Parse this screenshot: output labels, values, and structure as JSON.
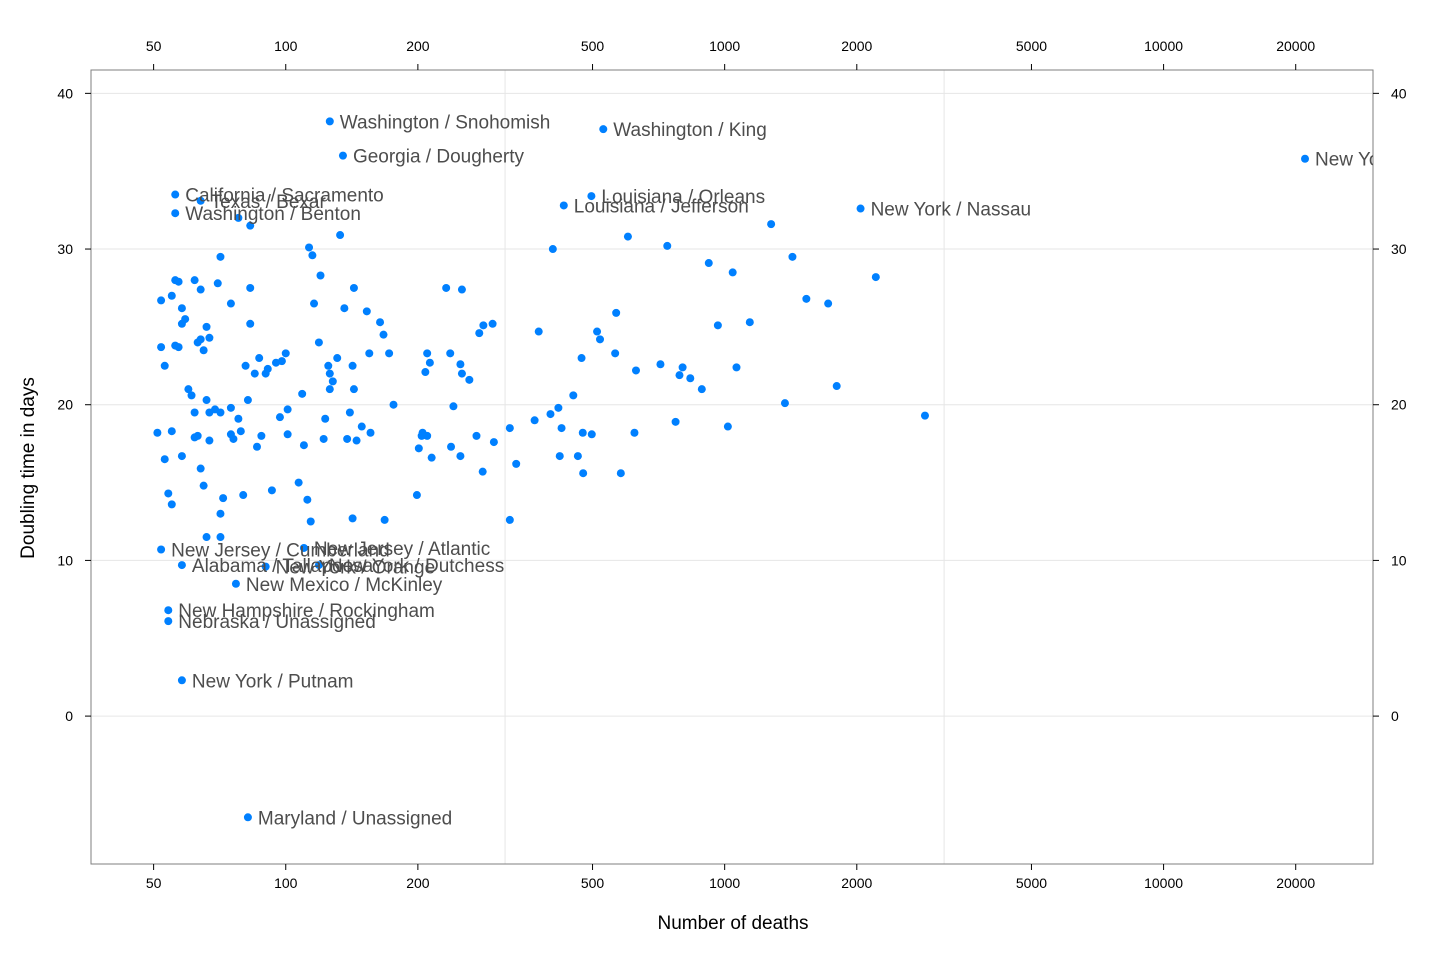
{
  "chart_data": {
    "type": "scatter",
    "xlabel": "Number of deaths",
    "ylabel": "Doubling time in days",
    "xscale": "log",
    "xlim": [
      36,
      30000
    ],
    "ylim": [
      -9.5,
      41.5
    ],
    "x_ticks": [
      50,
      100,
      200,
      500,
      1000,
      2000,
      5000,
      10000,
      20000
    ],
    "y_ticks": [
      0,
      10,
      20,
      30,
      40
    ],
    "x_gridlines": [
      316,
      3162
    ],
    "grid": true,
    "point_color": "#0080ff",
    "labeled_points": [
      {
        "x": 126,
        "y": 38.2,
        "label": "Washington / Snohomish"
      },
      {
        "x": 529,
        "y": 37.7,
        "label": "Washington / King"
      },
      {
        "x": 135,
        "y": 36.0,
        "label": "Georgia / Dougherty"
      },
      {
        "x": 21000,
        "y": 35.8,
        "label": "New York / New York"
      },
      {
        "x": 56,
        "y": 33.5,
        "label": "California / Sacramento"
      },
      {
        "x": 64,
        "y": 33.1,
        "label": "Texas / Bexar"
      },
      {
        "x": 497,
        "y": 33.4,
        "label": "Louisiana / Orleans"
      },
      {
        "x": 430,
        "y": 32.8,
        "label": "Louisiana / Jefferson"
      },
      {
        "x": 2040,
        "y": 32.6,
        "label": "New York / Nassau"
      },
      {
        "x": 56,
        "y": 32.3,
        "label": "Washington / Benton"
      },
      {
        "x": 52,
        "y": 10.7,
        "label": "New Jersey / Cumberland"
      },
      {
        "x": 110,
        "y": 10.8,
        "label": "New Jersey / Atlantic"
      },
      {
        "x": 58,
        "y": 9.7,
        "label": "Alabama / Tallapoosa"
      },
      {
        "x": 90,
        "y": 9.6,
        "label": "New York / Orange"
      },
      {
        "x": 119,
        "y": 9.7,
        "label": "New York / Dutchess"
      },
      {
        "x": 77,
        "y": 8.5,
        "label": "New Mexico / McKinley"
      },
      {
        "x": 54,
        "y": 6.8,
        "label": "New Hampshire / Rockingham"
      },
      {
        "x": 54,
        "y": 6.1,
        "label": "Nebraska / Unassigned"
      },
      {
        "x": 58,
        "y": 2.3,
        "label": "New York / Putnam"
      },
      {
        "x": 82,
        "y": -6.5,
        "label": "Maryland / Unassigned"
      }
    ],
    "points": [
      [
        78,
        32.0
      ],
      [
        83,
        31.5
      ],
      [
        133,
        30.9
      ],
      [
        113,
        30.1
      ],
      [
        115,
        29.6
      ],
      [
        71,
        29.5
      ],
      [
        120,
        28.3
      ],
      [
        56,
        28.0
      ],
      [
        57,
        27.9
      ],
      [
        62,
        28.0
      ],
      [
        70,
        27.8
      ],
      [
        64,
        27.4
      ],
      [
        83,
        27.5
      ],
      [
        52,
        26.7
      ],
      [
        55,
        27.0
      ],
      [
        75,
        26.5
      ],
      [
        116,
        26.5
      ],
      [
        136,
        26.2
      ],
      [
        143,
        27.5
      ],
      [
        58,
        26.2
      ],
      [
        59,
        25.5
      ],
      [
        58,
        25.2
      ],
      [
        66,
        25.0
      ],
      [
        83,
        25.2
      ],
      [
        153,
        26.0
      ],
      [
        164,
        25.3
      ],
      [
        167,
        24.5
      ],
      [
        63,
        24.0
      ],
      [
        64,
        24.2
      ],
      [
        67,
        24.3
      ],
      [
        56,
        23.8
      ],
      [
        57,
        23.7
      ],
      [
        52,
        23.7
      ],
      [
        65,
        23.5
      ],
      [
        87,
        23.0
      ],
      [
        95,
        22.7
      ],
      [
        98,
        22.8
      ],
      [
        100,
        23.3
      ],
      [
        119,
        24.0
      ],
      [
        131,
        23.0
      ],
      [
        125,
        22.5
      ],
      [
        53,
        22.5
      ],
      [
        81,
        22.5
      ],
      [
        85,
        22.0
      ],
      [
        90,
        22.0
      ],
      [
        91,
        22.3
      ],
      [
        126,
        22.0
      ],
      [
        128,
        21.5
      ],
      [
        126,
        21.0
      ],
      [
        142,
        22.5
      ],
      [
        155,
        23.3
      ],
      [
        172,
        23.3
      ],
      [
        143,
        21.0
      ],
      [
        109,
        20.7
      ],
      [
        60,
        21.0
      ],
      [
        61,
        20.6
      ],
      [
        66,
        20.3
      ],
      [
        82,
        20.3
      ],
      [
        62,
        19.5
      ],
      [
        67,
        19.5
      ],
      [
        69,
        19.7
      ],
      [
        71,
        19.5
      ],
      [
        75,
        19.8
      ],
      [
        78,
        19.1
      ],
      [
        101,
        19.7
      ],
      [
        97,
        19.2
      ],
      [
        123,
        19.1
      ],
      [
        140,
        19.5
      ],
      [
        176,
        20.0
      ],
      [
        51,
        18.2
      ],
      [
        55,
        18.3
      ],
      [
        62,
        17.9
      ],
      [
        63,
        18.0
      ],
      [
        67,
        17.7
      ],
      [
        75,
        18.1
      ],
      [
        76,
        17.8
      ],
      [
        79,
        18.3
      ],
      [
        86,
        17.3
      ],
      [
        88,
        18.0
      ],
      [
        101,
        18.1
      ],
      [
        110,
        17.4
      ],
      [
        122,
        17.8
      ],
      [
        138,
        17.8
      ],
      [
        145,
        17.7
      ],
      [
        149,
        18.6
      ],
      [
        156,
        18.2
      ],
      [
        53,
        16.5
      ],
      [
        58,
        16.7
      ],
      [
        64,
        15.9
      ],
      [
        65,
        14.8
      ],
      [
        54,
        14.3
      ],
      [
        55,
        13.6
      ],
      [
        72,
        14.0
      ],
      [
        80,
        14.2
      ],
      [
        93,
        14.5
      ],
      [
        107,
        15.0
      ],
      [
        112,
        13.9
      ],
      [
        114,
        12.5
      ],
      [
        71,
        13.0
      ],
      [
        66,
        11.5
      ],
      [
        71,
        11.5
      ],
      [
        142,
        12.7
      ],
      [
        168,
        12.6
      ],
      [
        205,
        18.2
      ],
      [
        201,
        17.2
      ],
      [
        215,
        16.6
      ],
      [
        208,
        22.1
      ],
      [
        210,
        23.3
      ],
      [
        213,
        22.7
      ],
      [
        237,
        23.3
      ],
      [
        250,
        22.6
      ],
      [
        252,
        22.0
      ],
      [
        262,
        21.6
      ],
      [
        276,
        24.6
      ],
      [
        282,
        25.1
      ],
      [
        296,
        25.2
      ],
      [
        232,
        27.5
      ],
      [
        252,
        27.4
      ],
      [
        241,
        19.9
      ],
      [
        204,
        18.0
      ],
      [
        210,
        18.0
      ],
      [
        238,
        17.3
      ],
      [
        250,
        16.7
      ],
      [
        272,
        18.0
      ],
      [
        298,
        17.6
      ],
      [
        324,
        18.5
      ],
      [
        281,
        15.7
      ],
      [
        199,
        14.2
      ],
      [
        324,
        12.6
      ],
      [
        335,
        16.2
      ],
      [
        377,
        24.7
      ],
      [
        406,
        30.0
      ],
      [
        369,
        19.0
      ],
      [
        401,
        19.4
      ],
      [
        418,
        19.8
      ],
      [
        425,
        18.5
      ],
      [
        421,
        16.7
      ],
      [
        452,
        20.6
      ],
      [
        472,
        23.0
      ],
      [
        463,
        16.7
      ],
      [
        475,
        18.2
      ],
      [
        476,
        15.6
      ],
      [
        498,
        18.1
      ],
      [
        512,
        24.7
      ],
      [
        520,
        24.2
      ],
      [
        566,
        25.9
      ],
      [
        563,
        23.3
      ],
      [
        580,
        15.6
      ],
      [
        602,
        30.8
      ],
      [
        628,
        22.2
      ],
      [
        623,
        18.2
      ],
      [
        740,
        30.2
      ],
      [
        714,
        22.6
      ],
      [
        789,
        21.9
      ],
      [
        802,
        22.4
      ],
      [
        835,
        21.7
      ],
      [
        773,
        18.9
      ],
      [
        887,
        21.0
      ],
      [
        920,
        29.1
      ],
      [
        965,
        25.1
      ],
      [
        1043,
        28.5
      ],
      [
        1064,
        22.4
      ],
      [
        1017,
        18.6
      ],
      [
        1141,
        25.3
      ],
      [
        1276,
        31.6
      ],
      [
        1427,
        29.5
      ],
      [
        1535,
        26.8
      ],
      [
        1721,
        26.5
      ],
      [
        1800,
        21.2
      ],
      [
        1372,
        20.1
      ],
      [
        2210,
        28.2
      ],
      [
        2860,
        19.3
      ]
    ]
  }
}
